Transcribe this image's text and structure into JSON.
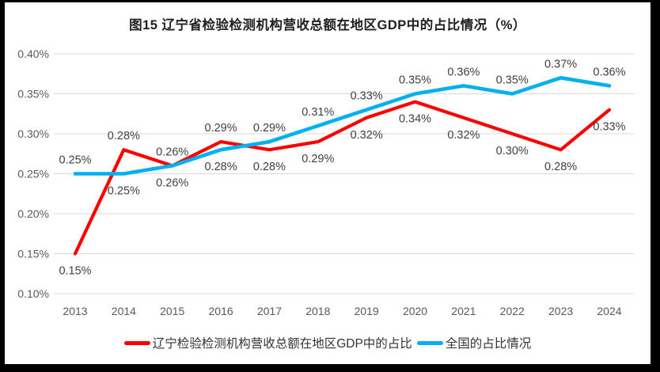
{
  "chart_data": {
    "type": "line",
    "title": "图15 辽宁省检验检测机构营收总额在地区GDP中的占比情况（%）",
    "categories": [
      "2013",
      "2014",
      "2015",
      "2016",
      "2017",
      "2018",
      "2019",
      "2020",
      "2021",
      "2022",
      "2023",
      "2024"
    ],
    "series": [
      {
        "name": "辽宁检验检测机构营收总额在地区GDP中的占比",
        "color": "#FF0000",
        "values": [
          0.15,
          0.28,
          0.26,
          0.29,
          0.28,
          0.29,
          0.32,
          0.34,
          0.32,
          0.3,
          0.28,
          0.33
        ],
        "labels": [
          "0.15%",
          "0.28%",
          "0.26%",
          "0.29%",
          "0.28%",
          "0.29%",
          "0.32%",
          "0.34%",
          "0.32%",
          "0.30%",
          "0.28%",
          "0.33%"
        ]
      },
      {
        "name": "全国的占比情况",
        "color": "#00B0F0",
        "values": [
          0.25,
          0.25,
          0.26,
          0.28,
          0.29,
          0.31,
          0.33,
          0.35,
          0.36,
          0.35,
          0.37,
          0.36
        ],
        "labels": [
          "0.25%",
          "0.25%",
          "0.26%",
          "0.28%",
          "0.29%",
          "0.31%",
          "0.33%",
          "0.35%",
          "0.36%",
          "0.35%",
          "0.37%",
          "0.36%"
        ]
      }
    ],
    "y_axis": {
      "min": 0.1,
      "max": 0.4,
      "step": 0.05,
      "ticks": [
        0.4,
        0.35,
        0.3,
        0.25,
        0.2,
        0.15,
        0.1
      ],
      "tick_labels": [
        "0.40%",
        "0.35%",
        "0.30%",
        "0.25%",
        "0.20%",
        "0.15%",
        "0.10%"
      ]
    },
    "grid": true,
    "legend_position": "bottom",
    "gridline_color": "#D9D9D9",
    "axis_text_color": "#595959",
    "data_label_color": "#404040"
  }
}
